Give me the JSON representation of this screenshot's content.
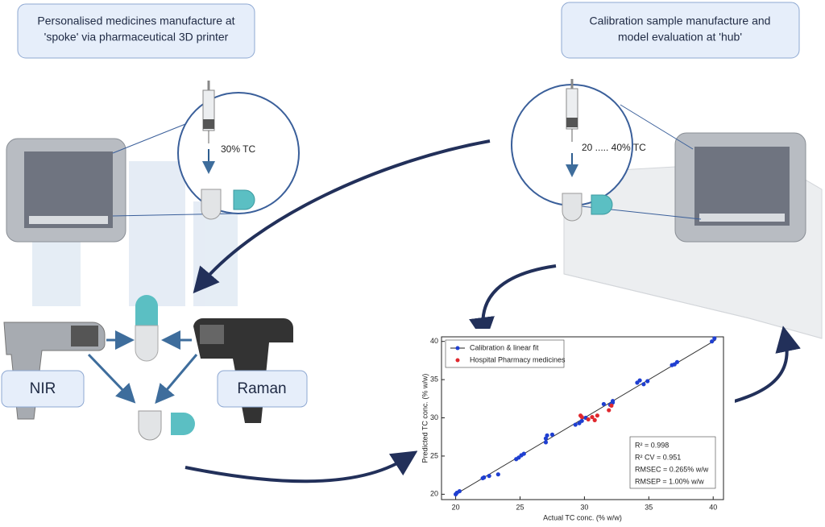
{
  "boxes": [
    {
      "lines": [
        "Personalised medicines manufacture at",
        "'spoke' via pharmaceutical 3D printer"
      ]
    },
    {
      "lines": [
        "Calibration sample manufacture and",
        "model evaluation at 'hub'"
      ]
    }
  ],
  "labels": {
    "spoke_dose": "30% TC",
    "hub_dose": "20 ..... 40% TC",
    "nir": "NIR",
    "raman": "Raman"
  },
  "chart_data": {
    "type": "scatter",
    "x_label": "Actual TC conc. (% w/w)",
    "y_label": "Predicted TC conc. (% w/w)",
    "xlim": [
      18.9,
      40.8
    ],
    "ylim": [
      19.3,
      40.6
    ],
    "xticks": [
      20,
      25,
      30,
      35,
      40
    ],
    "yticks": [
      20,
      25,
      30,
      35,
      40
    ],
    "legend": "top-left",
    "series": [
      {
        "name": "Calibration & linear fit",
        "color": "#1f3fd1",
        "x": [
          20,
          20.1,
          20.3,
          22.1,
          22.2,
          22.6,
          23.3,
          24.7,
          24.9,
          25.1,
          25.3,
          27,
          27,
          27.1,
          27.5,
          29.3,
          29.6,
          29.8,
          30.1,
          31.5,
          32,
          32.2,
          32.2,
          34.1,
          34.3,
          34.6,
          34.9,
          36.8,
          37,
          37.2,
          39.9,
          40.1
        ],
        "values": [
          20,
          20.2,
          20.4,
          22.1,
          22.2,
          22.4,
          22.6,
          24.6,
          24.8,
          25.1,
          25.3,
          26.8,
          27.3,
          27.7,
          27.8,
          29.1,
          29.3,
          29.6,
          30,
          31.8,
          31.7,
          32,
          32.2,
          34.6,
          34.9,
          34.4,
          34.8,
          36.9,
          37,
          37.3,
          40,
          40.4
        ]
      },
      {
        "name": "Hospital Pharmacy medicines",
        "color": "#e0282e",
        "x": [
          29.7,
          29.8,
          30.3,
          30.6,
          30.8,
          31,
          31.9,
          32.1
        ],
        "values": [
          30.3,
          30.1,
          29.8,
          30.1,
          29.7,
          30.3,
          31,
          31.6
        ]
      }
    ],
    "fit": {
      "x": [
        19.9,
        40.2
      ],
      "values": [
        19.9,
        40.2
      ]
    },
    "stats": [
      "R² = 0.998",
      "R² CV = 0.951",
      "RMSEC = 0.265% w/w",
      "RMSEP = 1.00% w/w"
    ]
  }
}
